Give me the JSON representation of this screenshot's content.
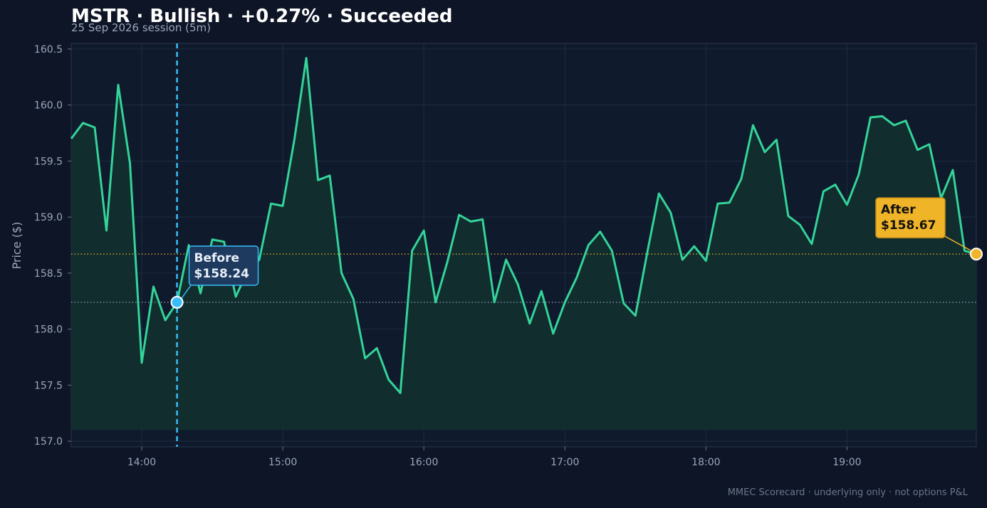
{
  "header": {
    "title": "MSTR · Bullish · +0.27% · Succeeded",
    "subtitle": "25 Sep 2026 session (5m)"
  },
  "footer": {
    "note": "MMEC Scorecard · underlying only · not options P&L"
  },
  "colors": {
    "background": "#0d1526",
    "plot_background": "#0f1a2c",
    "grid": "#1f2c40",
    "line": "#34d399",
    "fill": "#12302f",
    "before": "#38bdf8",
    "after": "#f0b429",
    "axis_text": "#9aa7bd"
  },
  "chart_data": {
    "type": "line",
    "title": "MSTR · Bullish · +0.27% · Succeeded",
    "subtitle": "25 Sep 2026 session (5m)",
    "xlabel": "",
    "ylabel": "Price ($)",
    "ylim": [
      156.95,
      160.55
    ],
    "xlim": [
      "13:30",
      "19:55"
    ],
    "x_ticks": [
      "14:00",
      "15:00",
      "16:00",
      "17:00",
      "18:00",
      "19:00"
    ],
    "y_ticks": [
      "157.0",
      "157.5",
      "158.0",
      "158.5",
      "159.0",
      "159.5",
      "160.0",
      "160.5"
    ],
    "grid": true,
    "fill_baseline": 157.1,
    "series": [
      {
        "x": [
          "13:30",
          "13:35",
          "13:40",
          "13:45",
          "13:50",
          "13:55",
          "14:00",
          "14:05",
          "14:10",
          "14:15",
          "14:20",
          "14:25",
          "14:30",
          "14:35",
          "14:40",
          "14:45",
          "14:50",
          "14:55",
          "15:00",
          "15:05",
          "15:10",
          "15:15",
          "15:20",
          "15:25",
          "15:30",
          "15:35",
          "15:40",
          "15:45",
          "15:50",
          "15:55",
          "16:00",
          "16:05",
          "16:10",
          "16:15",
          "16:20",
          "16:25",
          "16:30",
          "16:35",
          "16:40",
          "16:45",
          "16:50",
          "16:55",
          "17:00",
          "17:05",
          "17:10",
          "17:15",
          "17:20",
          "17:25",
          "17:30",
          "17:35",
          "17:40",
          "17:45",
          "17:50",
          "17:55",
          "18:00",
          "18:05",
          "18:10",
          "18:15",
          "18:20",
          "18:25",
          "18:30",
          "18:35",
          "18:40",
          "18:45",
          "18:50",
          "18:55",
          "19:00",
          "19:05",
          "19:10",
          "19:15",
          "19:20",
          "19:25",
          "19:30",
          "19:35",
          "19:40",
          "19:45",
          "19:50",
          "19:55"
        ],
        "values": [
          159.7,
          159.84,
          159.8,
          158.88,
          160.18,
          159.48,
          157.7,
          158.38,
          158.08,
          158.24,
          158.75,
          158.32,
          158.8,
          158.78,
          158.29,
          158.52,
          158.62,
          159.12,
          159.1,
          159.7,
          160.42,
          159.33,
          159.37,
          158.5,
          158.27,
          157.74,
          157.83,
          157.55,
          157.43,
          158.7,
          158.88,
          158.24,
          158.6,
          159.02,
          158.96,
          158.98,
          158.24,
          158.62,
          158.4,
          158.05,
          158.34,
          157.96,
          158.24,
          158.46,
          158.75,
          158.87,
          158.7,
          158.23,
          158.12,
          158.68,
          159.21,
          159.04,
          158.62,
          158.74,
          158.61,
          159.12,
          159.13,
          159.34,
          159.82,
          159.58,
          159.69,
          159.01,
          158.93,
          158.76,
          159.23,
          159.29,
          159.11,
          159.38,
          159.89,
          159.9,
          159.82,
          159.86,
          159.6,
          159.65,
          159.17,
          159.42,
          158.7,
          158.67
        ]
      }
    ],
    "annotations": [
      {
        "label": "Before",
        "price_text": "$158.24",
        "x": "14:15",
        "y": 158.24,
        "line_style": "dashed-vertical"
      },
      {
        "label": "After",
        "price_text": "$158.67",
        "x": "19:55",
        "y": 158.67,
        "line_style": "dotted-horizontal"
      }
    ]
  }
}
